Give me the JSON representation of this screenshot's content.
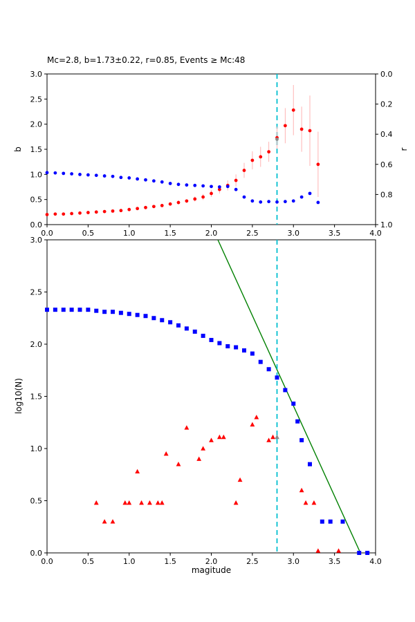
{
  "title": "Mc=2.8, b=1.73±0.22, r=0.85, Events ≥ Mc:48",
  "labels": {
    "top_ylabel_left": "b",
    "top_ylabel_right": "r",
    "bottom_ylabel": "log10(N)",
    "bottom_xlabel": "magitude"
  },
  "colors": {
    "b_series": "#ff0000",
    "r_series": "#0000ff",
    "cumulative": "#0000ff",
    "noncumulative": "#ff0000",
    "fit_line": "#008000",
    "mc_line": "#00bfcf",
    "error_bar": "#ffb3b3",
    "mc_marker": "#8a8a8a"
  },
  "chart_data": [
    {
      "id": "top",
      "type": "scatter",
      "xlim": [
        0,
        4
      ],
      "ylim": [
        0,
        3
      ],
      "ylim_right": [
        0,
        1
      ],
      "right_axis_inverted": true,
      "xticks": {
        "values": [
          0,
          0.5,
          1,
          1.5,
          2,
          2.5,
          3,
          3.5,
          4
        ],
        "labels": [
          "0.0",
          "0.5",
          "1.0",
          "1.5",
          "2.0",
          "2.5",
          "3.0",
          "3.5",
          "4.0"
        ]
      },
      "yticks": {
        "values": [
          0,
          0.5,
          1,
          1.5,
          2,
          2.5,
          3
        ],
        "labels": [
          "0.0",
          "0.5",
          "1.0",
          "1.5",
          "2.0",
          "2.5",
          "3.0"
        ]
      },
      "yticks_right": {
        "values": [
          0,
          0.2,
          0.4,
          0.6,
          0.8,
          1.0
        ],
        "labels": [
          "0.0",
          "0.2",
          "0.4",
          "0.6",
          "0.8",
          "1.0"
        ]
      },
      "vline": {
        "x": 2.8,
        "color": "#00bfcf",
        "style": "dashed"
      },
      "series": [
        {
          "name": "b-value",
          "marker": "circle",
          "axis": "left",
          "color": "#ff0000",
          "err_color": "#ffb3b3",
          "x": [
            0,
            0.1,
            0.2,
            0.3,
            0.4,
            0.5,
            0.6,
            0.7,
            0.8,
            0.9,
            1.0,
            1.1,
            1.2,
            1.3,
            1.4,
            1.5,
            1.6,
            1.7,
            1.8,
            1.9,
            2.0,
            2.1,
            2.2,
            2.3,
            2.4,
            2.5,
            2.6,
            2.7,
            2.8,
            2.9,
            3.0,
            3.1,
            3.2,
            3.3
          ],
          "y": [
            0.2,
            0.21,
            0.21,
            0.22,
            0.23,
            0.24,
            0.25,
            0.26,
            0.27,
            0.28,
            0.3,
            0.32,
            0.34,
            0.36,
            0.38,
            0.41,
            0.44,
            0.47,
            0.51,
            0.55,
            0.62,
            0.7,
            0.78,
            0.88,
            1.08,
            1.28,
            1.35,
            1.45,
            1.73,
            1.97,
            2.28,
            1.9,
            1.87,
            1.2
          ],
          "yerr": [
            0.02,
            0.02,
            0.02,
            0.02,
            0.02,
            0.02,
            0.02,
            0.02,
            0.02,
            0.02,
            0.02,
            0.02,
            0.02,
            0.02,
            0.03,
            0.03,
            0.04,
            0.04,
            0.05,
            0.06,
            0.07,
            0.08,
            0.1,
            0.12,
            0.15,
            0.18,
            0.2,
            0.2,
            0.22,
            0.35,
            0.5,
            0.45,
            0.7,
            0.65
          ]
        },
        {
          "name": "r-value",
          "marker": "circle",
          "axis": "right",
          "color": "#0000ff",
          "x": [
            0,
            0.1,
            0.2,
            0.3,
            0.4,
            0.5,
            0.6,
            0.7,
            0.8,
            0.9,
            1.0,
            1.1,
            1.2,
            1.3,
            1.4,
            1.5,
            1.6,
            1.7,
            1.8,
            1.9,
            2.0,
            2.1,
            2.2,
            2.3,
            2.4,
            2.5,
            2.6,
            2.7,
            2.8,
            2.9,
            3.0,
            3.1,
            3.2,
            3.3
          ],
          "y": [
            0.655,
            0.657,
            0.66,
            0.663,
            0.667,
            0.67,
            0.673,
            0.677,
            0.68,
            0.687,
            0.69,
            0.697,
            0.703,
            0.71,
            0.717,
            0.727,
            0.733,
            0.737,
            0.74,
            0.743,
            0.747,
            0.75,
            0.747,
            0.767,
            0.817,
            0.843,
            0.85,
            0.847,
            0.85,
            0.847,
            0.843,
            0.817,
            0.793,
            0.853
          ]
        },
        {
          "name": "mc-point",
          "marker": "circle",
          "axis": "left",
          "color": "#8a8a8a",
          "x": [
            2.8
          ],
          "y": [
            1.7
          ]
        }
      ]
    },
    {
      "id": "bottom",
      "type": "scatter",
      "xlim": [
        0,
        4
      ],
      "ylim": [
        0,
        3
      ],
      "xticks": {
        "values": [
          0,
          0.5,
          1,
          1.5,
          2,
          2.5,
          3,
          3.5,
          4
        ],
        "labels": [
          "0.0",
          "0.5",
          "1.0",
          "1.5",
          "2.0",
          "2.5",
          "3.0",
          "3.5",
          "4.0"
        ]
      },
      "yticks": {
        "values": [
          0,
          0.5,
          1,
          1.5,
          2,
          2.5,
          3
        ],
        "labels": [
          "0.0",
          "0.5",
          "1.0",
          "1.5",
          "2.0",
          "2.5",
          "3.0"
        ]
      },
      "vline": {
        "x": 2.8,
        "color": "#00bfcf",
        "style": "dashed"
      },
      "line": {
        "name": "gr-fit-line",
        "color": "#008000",
        "x": [
          2.08,
          3.815
        ],
        "y": [
          3.0,
          0.0
        ]
      },
      "series": [
        {
          "name": "cumulative-count",
          "marker": "square",
          "axis": "left",
          "color": "#0000ff",
          "x": [
            0,
            0.1,
            0.2,
            0.3,
            0.4,
            0.5,
            0.6,
            0.7,
            0.8,
            0.9,
            1.0,
            1.1,
            1.2,
            1.3,
            1.4,
            1.5,
            1.6,
            1.7,
            1.8,
            1.9,
            2.0,
            2.1,
            2.2,
            2.3,
            2.4,
            2.5,
            2.6,
            2.7,
            2.8,
            2.9,
            3.0,
            3.05,
            3.1,
            3.2,
            3.35,
            3.45,
            3.6,
            3.8,
            3.9
          ],
          "y": [
            2.33,
            2.33,
            2.33,
            2.33,
            2.33,
            2.33,
            2.32,
            2.31,
            2.31,
            2.3,
            2.29,
            2.28,
            2.27,
            2.25,
            2.23,
            2.21,
            2.18,
            2.15,
            2.12,
            2.08,
            2.04,
            2.01,
            1.98,
            1.97,
            1.94,
            1.91,
            1.83,
            1.76,
            1.68,
            1.56,
            1.43,
            1.26,
            1.08,
            0.85,
            0.3,
            0.3,
            0.3,
            0.0,
            0.0
          ]
        },
        {
          "name": "noncumulative-count",
          "marker": "triangle",
          "axis": "left",
          "color": "#ff0000",
          "x": [
            0.6,
            0.7,
            0.8,
            0.95,
            1.0,
            1.1,
            1.15,
            1.25,
            1.35,
            1.4,
            1.45,
            1.6,
            1.7,
            1.85,
            1.9,
            2.0,
            2.1,
            2.15,
            2.3,
            2.35,
            2.5,
            2.55,
            2.7,
            2.75,
            3.1,
            3.15,
            3.25,
            3.3,
            3.55
          ],
          "y": [
            0.48,
            0.3,
            0.3,
            0.48,
            0.48,
            0.78,
            0.48,
            0.48,
            0.48,
            0.48,
            0.95,
            0.85,
            1.2,
            0.9,
            1.0,
            1.08,
            1.11,
            1.11,
            0.48,
            0.7,
            1.23,
            1.3,
            1.08,
            1.11,
            0.6,
            0.48,
            0.48,
            0.02,
            0.02
          ]
        },
        {
          "name": "mc-point",
          "marker": "triangle",
          "axis": "left",
          "color": "#8a8a8a",
          "x": [
            2.8
          ],
          "y": [
            1.11
          ]
        }
      ]
    }
  ]
}
